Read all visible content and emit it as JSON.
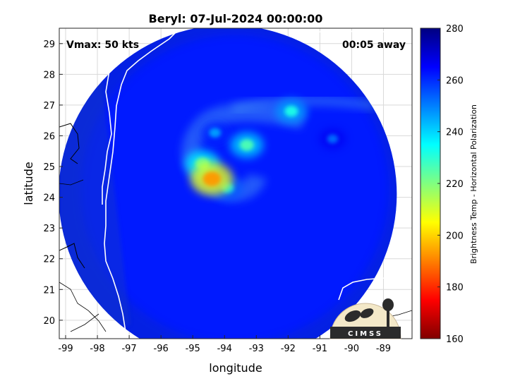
{
  "chart_data": {
    "type": "heatmap",
    "title": "Beryl: 07-Jul-2024 00:00:00",
    "xlabel": "longitude",
    "ylabel": "latitude",
    "xlim": [
      -99.2,
      -88.1
    ],
    "ylim": [
      19.4,
      29.5
    ],
    "xticks": [
      -99,
      -98,
      -97,
      -96,
      -95,
      -94,
      -93,
      -92,
      -91,
      -90,
      -89
    ],
    "yticks": [
      20,
      21,
      22,
      23,
      24,
      25,
      26,
      27,
      28,
      29
    ],
    "grid": true,
    "annotations": {
      "left": "Vmax: 50 kts",
      "right": "00:05 away"
    },
    "colorbar": {
      "label": "Brightness Temp - Horizontal Polarization",
      "range": [
        160,
        280
      ],
      "ticks": [
        160,
        180,
        200,
        220,
        240,
        260,
        280
      ],
      "colormap": "jet"
    },
    "swath": {
      "center_lon": -93.9,
      "center_lat": 24.1,
      "radius_deg_lat": 5.5
    },
    "background_temp": 262,
    "features": [
      {
        "lon": -94.4,
        "lat": 24.6,
        "temp": 193
      },
      {
        "lon": -94.7,
        "lat": 25.1,
        "temp": 222
      },
      {
        "lon": -93.3,
        "lat": 25.7,
        "temp": 226
      },
      {
        "lon": -91.9,
        "lat": 26.8,
        "temp": 232
      },
      {
        "lon": -93.9,
        "lat": 24.3,
        "temp": 240
      },
      {
        "lon": -94.3,
        "lat": 26.1,
        "temp": 246
      },
      {
        "lon": -90.6,
        "lat": 25.9,
        "temp": 252
      }
    ],
    "logo_text": "CIMSS"
  }
}
